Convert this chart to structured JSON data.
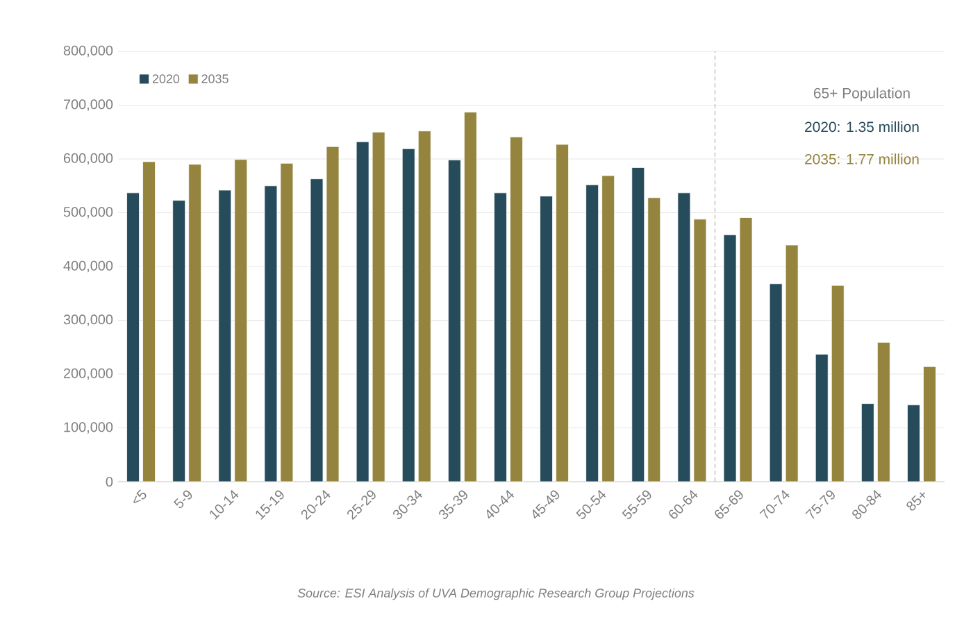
{
  "chart_data": {
    "type": "bar",
    "categories": [
      "<5",
      "5-9",
      "10-14",
      "15-19",
      "20-24",
      "25-29",
      "30-34",
      "35-39",
      "40-44",
      "45-49",
      "50-54",
      "55-59",
      "60-64",
      "65-69",
      "70-74",
      "75-79",
      "80-84",
      "85+"
    ],
    "series": [
      {
        "name": "2020",
        "color": "#264b5a",
        "values": [
          537000,
          523000,
          542000,
          550000,
          563000,
          632000,
          619000,
          598000,
          537000,
          531000,
          552000,
          584000,
          537000,
          459000,
          368000,
          237000,
          145000,
          143000
        ]
      },
      {
        "name": "2035",
        "color": "#94843e",
        "values": [
          595000,
          590000,
          599000,
          592000,
          623000,
          650000,
          652000,
          687000,
          641000,
          627000,
          569000,
          528000,
          488000,
          491000,
          440000,
          365000,
          259000,
          214000
        ]
      }
    ],
    "ylim": [
      0,
      800000
    ],
    "yticks": [
      0,
      {
        "value": 100000,
        "label": "100,000"
      },
      {
        "value": 200000,
        "label": "200,000"
      },
      {
        "value": 300000,
        "label": "300,000"
      },
      {
        "value": 400000,
        "label": "400,000"
      },
      {
        "value": 500000,
        "label": "500,000"
      },
      {
        "value": 600000,
        "label": "600,000"
      },
      {
        "value": 700000,
        "label": "700,000"
      },
      {
        "value": 800000,
        "label": "800,000"
      }
    ],
    "grid": "y",
    "legend": "top left",
    "ref_lines": [
      {
        "axis": "x",
        "value": "65-69",
        "color": "#a0a0a0",
        "line_style": "dashed"
      }
    ],
    "annotations": [
      "65+ Population",
      "2020: 1.35 million",
      "2035: 1.77 million",
      "Source: ESI Analysis of UVA Demographic Research Group Projections"
    ]
  }
}
